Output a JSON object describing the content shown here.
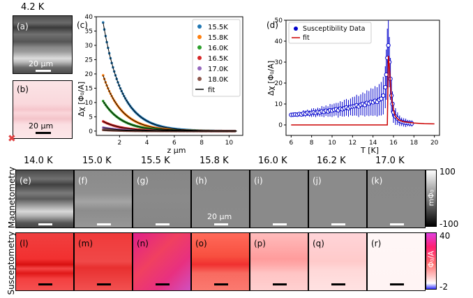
{
  "top_left": {
    "temp_label": "4.2 K",
    "panel_a_label": "(a)",
    "panel_b_label": "(b)",
    "scale_a": "20 μm",
    "scale_b": "20 μm"
  },
  "rows": {
    "magnetometry_label": "Magnetometry",
    "susceptometry_label": "Susceptometry",
    "temps": [
      "14.0 K",
      "15.0 K",
      "15.5 K",
      "15.8 K",
      "16.0 K",
      "16.2 K",
      "17.0 K"
    ],
    "mag_labels": [
      "(e)",
      "(f)",
      "(g)",
      "(h)",
      "(i)",
      "(j)",
      "(k)"
    ],
    "sus_labels": [
      "(l)",
      "(m)",
      "(n)",
      "(o)",
      "(p)",
      "(q)",
      "(r)"
    ],
    "scale_h": "20 μm"
  },
  "colorbars": {
    "mag_max": "100",
    "mag_min": "-100",
    "mag_unit": "mΦ₀",
    "sus_max": "40",
    "sus_min": "-2",
    "sus_unit": "Φ₀/A"
  },
  "colors": {
    "sus_base": "#e8001a",
    "marker": "#e04040"
  },
  "chart_data": [
    {
      "type": "line",
      "panel_label": "(c)",
      "xlabel": "z μm",
      "ylabel": "Δχ [Φ₀/A]",
      "xlim": [
        0.3,
        11
      ],
      "ylim": [
        -1.5,
        40
      ],
      "xticks": [
        2,
        4,
        6,
        8,
        10
      ],
      "yticks": [
        0,
        5,
        10,
        15,
        20,
        25,
        30,
        35,
        40
      ],
      "legend_position": "top-right",
      "fit_label": "fit",
      "series": [
        {
          "name": "15.5K",
          "color": "#1f77b4",
          "amplitude": 38.0,
          "decay": 1.35
        },
        {
          "name": "15.8K",
          "color": "#ff7f0e",
          "amplitude": 19.5,
          "decay": 1.35
        },
        {
          "name": "16.0K",
          "color": "#2ca02c",
          "amplitude": 10.5,
          "decay": 1.35
        },
        {
          "name": "16.5K",
          "color": "#d62728",
          "amplitude": 3.4,
          "decay": 1.35
        },
        {
          "name": "17.0K",
          "color": "#9467bd",
          "amplitude": 1.2,
          "decay": 1.35
        },
        {
          "name": "18.0K",
          "color": "#8c564b",
          "amplitude": 0.4,
          "decay": 1.35
        }
      ]
    },
    {
      "type": "scatter",
      "panel_label": "(d)",
      "xlabel": "T [K]",
      "ylabel": "Δχ [Φ₀/A]",
      "xlim": [
        5.5,
        20.5
      ],
      "ylim": [
        -5,
        50
      ],
      "xticks": [
        6,
        8,
        10,
        12,
        14,
        16,
        18,
        20
      ],
      "yticks": [
        0,
        10,
        20,
        30,
        40,
        50
      ],
      "legend_position": "top-left",
      "series_name": "Susceptibility Data",
      "fit_name": "fit",
      "data_color": "#0000cc",
      "fit_color": "#cc0000",
      "x": [
        6.0,
        6.2,
        6.4,
        6.6,
        6.8,
        7.0,
        7.2,
        7.4,
        7.6,
        7.8,
        8.0,
        8.2,
        8.4,
        8.6,
        8.8,
        9.0,
        9.2,
        9.4,
        9.6,
        9.8,
        10.0,
        10.2,
        10.4,
        10.6,
        10.8,
        11.0,
        11.2,
        11.4,
        11.6,
        11.8,
        12.0,
        12.2,
        12.4,
        12.6,
        12.8,
        13.0,
        13.2,
        13.4,
        13.6,
        13.8,
        14.0,
        14.2,
        14.4,
        14.6,
        14.8,
        15.0,
        15.2,
        15.3,
        15.4,
        15.5,
        15.6,
        15.7,
        15.8,
        15.9,
        16.0,
        16.2,
        16.4,
        16.6,
        16.8,
        17.0,
        17.2,
        17.4,
        17.6,
        17.8
      ],
      "y": [
        4.8,
        4.9,
        5.0,
        4.9,
        5.2,
        5.0,
        5.5,
        5.3,
        5.8,
        5.4,
        5.8,
        6.0,
        5.7,
        6.2,
        6.0,
        6.5,
        6.2,
        6.8,
        6.4,
        7.0,
        6.8,
        7.2,
        7.5,
        7.0,
        7.8,
        7.5,
        8.0,
        8.4,
        7.9,
        8.6,
        8.8,
        9.0,
        9.4,
        8.8,
        9.6,
        10.0,
        9.5,
        10.5,
        10.2,
        11.0,
        10.8,
        11.5,
        11.0,
        12.0,
        12.5,
        14.0,
        18.0,
        24.0,
        32.0,
        38.0,
        30.0,
        22.0,
        14.0,
        10.0,
        6.0,
        4.0,
        3.0,
        2.0,
        1.5,
        1.2,
        1.0,
        0.9,
        0.8,
        0.7
      ],
      "err": [
        1,
        1,
        1,
        1,
        1,
        1,
        1.5,
        1.5,
        1.5,
        1.5,
        2,
        2,
        2,
        2,
        2,
        2.5,
        2.5,
        2.5,
        2.5,
        3,
        3,
        3,
        3,
        3.5,
        3.5,
        3.5,
        4,
        4,
        4,
        4,
        4.5,
        4.5,
        5,
        5,
        5,
        5.5,
        5.5,
        6,
        6,
        6.5,
        6.5,
        7,
        7,
        7.5,
        8,
        9,
        10,
        12,
        14,
        14,
        12,
        10,
        8,
        6,
        5,
        4,
        3,
        2.5,
        2,
        2,
        2,
        1.5,
        1.5,
        1.5
      ],
      "fit_x": [
        6,
        8,
        10,
        12,
        13,
        14,
        14.5,
        15,
        15.2,
        15.3,
        15.4,
        15.5,
        15.6,
        15.7,
        15.8,
        16.0,
        16.2,
        16.5,
        17,
        18,
        19,
        20
      ],
      "fit_y": [
        0,
        0,
        0,
        0,
        0,
        0,
        0,
        0,
        0,
        0,
        0,
        33,
        28,
        20,
        13,
        7,
        4,
        2.4,
        1.5,
        0.9,
        0.6,
        0.5
      ]
    }
  ]
}
